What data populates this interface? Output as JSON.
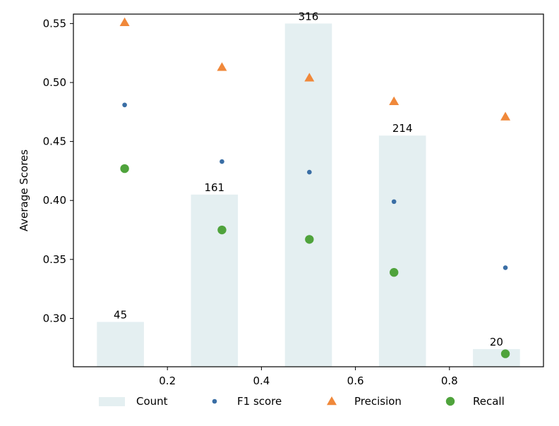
{
  "chart_data": {
    "type": "bar",
    "ylabel": "Average Scores",
    "xlabel": "",
    "title": "",
    "xlim": [
      0.0,
      1.0
    ],
    "ylim": [
      0.259,
      0.558
    ],
    "x_ticks": [
      "0.2",
      "0.4",
      "0.6",
      "0.8"
    ],
    "x_tick_values": [
      0.2,
      0.4,
      0.6,
      0.8
    ],
    "y_ticks": [
      "0.30",
      "0.35",
      "0.40",
      "0.45",
      "0.50",
      "0.55"
    ],
    "y_tick_values": [
      0.3,
      0.35,
      0.4,
      0.45,
      0.5,
      0.55
    ],
    "grid": false,
    "legend_position": "bottom",
    "bar_x": [
      0.1,
      0.3,
      0.5,
      0.7,
      0.9
    ],
    "bar_width": 0.1,
    "bars": {
      "name": "Count",
      "color": "#e4eff1",
      "heights": [
        0.297,
        0.405,
        0.55,
        0.455,
        0.274
      ],
      "labels": [
        "45",
        "161",
        "316",
        "214",
        "20"
      ]
    },
    "series": [
      {
        "name": "F1 score",
        "marker": "dot",
        "color": "#3a6ea5",
        "x": [
          0.109,
          0.316,
          0.502,
          0.682,
          0.919
        ],
        "values": [
          0.481,
          0.433,
          0.424,
          0.399,
          0.343
        ]
      },
      {
        "name": "Precision",
        "marker": "triangle",
        "color": "#f0883a",
        "x": [
          0.109,
          0.316,
          0.502,
          0.682,
          0.919
        ],
        "values": [
          0.551,
          0.513,
          0.504,
          0.484,
          0.471
        ]
      },
      {
        "name": "Recall",
        "marker": "circle",
        "color": "#4fa33c",
        "x": [
          0.109,
          0.316,
          0.502,
          0.682,
          0.919
        ],
        "values": [
          0.427,
          0.375,
          0.367,
          0.339,
          0.27
        ]
      }
    ],
    "legend": [
      "Count",
      "F1 score",
      "Precision",
      "Recall"
    ]
  }
}
